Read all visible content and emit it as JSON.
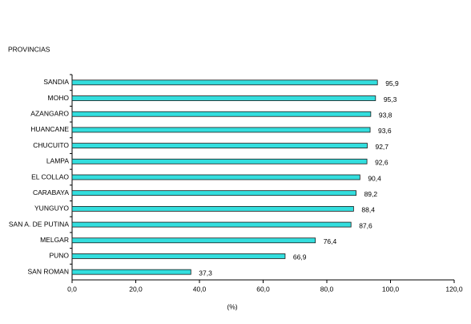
{
  "chart_data": {
    "type": "hbar",
    "y_axis_title": "PROVINCIAS",
    "x_axis_title": "(%)",
    "categories": [
      "SANDIA",
      "MOHO",
      "AZANGARO",
      "HUANCANE",
      "CHUCUITO",
      "LAMPA",
      "EL COLLAO",
      "CARABAYA",
      "YUNGUYO",
      "SAN A. DE PUTINA",
      "MELGAR",
      "PUNO",
      "SAN ROMAN"
    ],
    "values": [
      95.9,
      95.3,
      93.8,
      93.6,
      92.7,
      92.6,
      90.4,
      89.2,
      88.4,
      87.6,
      76.4,
      66.9,
      37.3
    ],
    "value_labels": [
      "95,9",
      "95,3",
      "93,8",
      "93,6",
      "92,7",
      "92,6",
      "90,4",
      "89,2",
      "88,4",
      "87,6",
      "76,4",
      "66,9",
      "37,3"
    ],
    "color": "#33dede",
    "xlim": [
      0,
      120
    ],
    "xticks": [
      {
        "value": 0,
        "label": "0,0"
      },
      {
        "value": 20,
        "label": "20,0"
      },
      {
        "value": 40,
        "label": "40,0"
      },
      {
        "value": 60,
        "label": "60,0"
      },
      {
        "value": 80,
        "label": "80,0"
      },
      {
        "value": 100,
        "label": "100,0"
      },
      {
        "value": 120,
        "label": "120,0"
      }
    ]
  }
}
